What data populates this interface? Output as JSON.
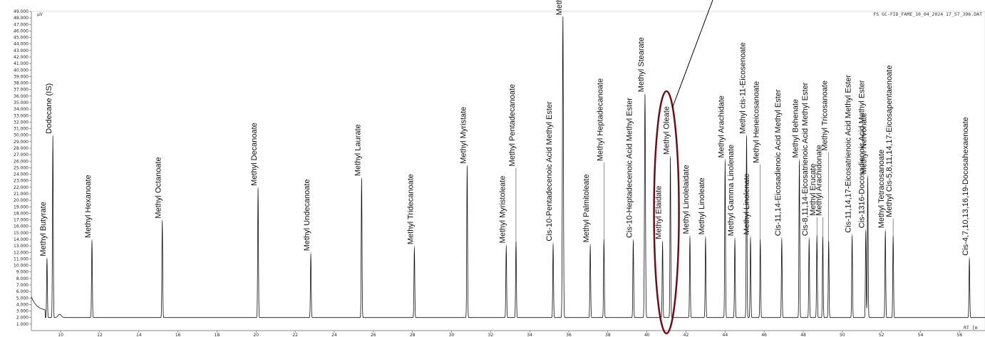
{
  "header": {
    "file_tag": "FS GC-FID_FAME_10_04_2024 17_57_396.DAT",
    "y_unit": "µV",
    "x_label": "RT [m"
  },
  "chart_data": {
    "type": "line",
    "x_unit": "min",
    "y_unit": "µV",
    "xlim": [
      8.5,
      57.3
    ],
    "ylim": [
      0,
      49000
    ],
    "y_ticks": [
      "1.000",
      "2.000",
      "3.000",
      "4.000",
      "5.000",
      "6.000",
      "7.000",
      "8.000",
      "9.000",
      "10.000",
      "11.000",
      "12.000",
      "13.000",
      "14.000",
      "15.000",
      "16.000",
      "17.000",
      "18.000",
      "19.000",
      "20.000",
      "21.000",
      "22.000",
      "23.000",
      "24.000",
      "25.000",
      "26.000",
      "27.000",
      "28.000",
      "29.000",
      "30.000",
      "31.000",
      "32.000",
      "33.000",
      "34.000",
      "35.000",
      "36.000",
      "37.000",
      "38.000",
      "39.000",
      "40.000",
      "41.000",
      "42.000",
      "43.000",
      "44.000",
      "45.000",
      "46.000",
      "47.000",
      "48.000",
      "49.000"
    ],
    "x_ticks": [
      "10",
      "12",
      "14",
      "16",
      "18",
      "20",
      "22",
      "24",
      "26",
      "28",
      "30",
      "32",
      "34",
      "36",
      "38",
      "40",
      "42",
      "44",
      "46",
      "48",
      "50",
      "52",
      "54",
      "56"
    ],
    "peaks": [
      {
        "name": "Methyl Butyrate",
        "rt": 9.3,
        "height": 11000,
        "label_at": 11200
      },
      {
        "name": "Dodecane (IS)",
        "rt": 9.6,
        "height": 29800,
        "label_at": 30000
      },
      {
        "name": "Methyl Hexanoate",
        "rt": 11.6,
        "height": 13800,
        "label_at": 14000
      },
      {
        "name": "Methyl Octanoate",
        "rt": 15.2,
        "height": 16800,
        "label_at": 17000
      },
      {
        "name": "Methyl Decanoate",
        "rt": 20.1,
        "height": 21800,
        "label_at": 22000
      },
      {
        "name": "Methyl Undecanoate",
        "rt": 22.8,
        "height": 11700,
        "label_at": 12000
      },
      {
        "name": "Methyl Laurate",
        "rt": 25.4,
        "height": 23300,
        "label_at": 23500
      },
      {
        "name": "Methyl Tridecanoate",
        "rt": 28.1,
        "height": 12700,
        "label_at": 13000
      },
      {
        "name": "Methyl Myristate",
        "rt": 30.8,
        "height": 25200,
        "label_at": 25400
      },
      {
        "name": "Methyl Myristoleate",
        "rt": 32.8,
        "height": 12900,
        "label_at": 13200
      },
      {
        "name": "Methyl Pentadecanoate",
        "rt": 33.3,
        "height": 13700,
        "label_at": 25000
      },
      {
        "name": "Cis-10-Pentadecenoic Acid Methyl Ester",
        "rt": 35.2,
        "height": 13200,
        "label_at": 13500
      },
      {
        "name": "Methyl Palmitate",
        "rt": 35.7,
        "height": 48200,
        "label_at": 48200
      },
      {
        "name": "Methyl Palmitoleate",
        "rt": 37.1,
        "height": 13000,
        "label_at": 13300
      },
      {
        "name": "Methyl Heptadecanoate",
        "rt": 37.8,
        "height": 14000,
        "label_at": 25800
      },
      {
        "name": "Cis-10-Heptadecenoic Acid Methyl Ester",
        "rt": 39.3,
        "height": 13800,
        "label_at": 14000
      },
      {
        "name": "Methyl Stearate",
        "rt": 39.9,
        "height": 36200,
        "label_at": 36400
      },
      {
        "name": "Methyl Elaidate",
        "rt": 40.8,
        "height": 13500,
        "label_at": 13800
      },
      {
        "name": "Methyl Oleate",
        "rt": 41.2,
        "height": 26500,
        "label_at": 26800
      },
      {
        "name": "Methyl Linolelaidate",
        "rt": 42.2,
        "height": 14300,
        "label_at": 14600
      },
      {
        "name": "Methyl Linoleate",
        "rt": 43.0,
        "height": 14200,
        "label_at": 14500
      },
      {
        "name": "Methyl Arachidate",
        "rt": 44.0,
        "height": 26000,
        "label_at": 26300
      },
      {
        "name": "Methyl Gamma Linolenate",
        "rt": 44.5,
        "height": 14000,
        "label_at": 14300
      },
      {
        "name": "Methyl cis-11-Eicosenoate",
        "rt": 45.1,
        "height": 29800,
        "label_at": 30000
      },
      {
        "name": "Methyl Linolenate",
        "rt": 45.3,
        "height": 14200,
        "label_at": 14500
      },
      {
        "name": "Methyl Heneicosanoate",
        "rt": 45.8,
        "height": 14000,
        "label_at": 25500
      },
      {
        "name": "Cis-11,14-Eicosadienoic Acid Methyl Ester",
        "rt": 46.9,
        "height": 14000,
        "label_at": 14300
      },
      {
        "name": "Methyl Behenate",
        "rt": 47.8,
        "height": 26000,
        "label_at": 26300
      },
      {
        "name": "Cis-8,11,14-Eicosatrienoic Acid Methyl Ester",
        "rt": 48.3,
        "height": 14000,
        "label_at": 14300
      },
      {
        "name": "Methyl Erucate",
        "rt": 48.7,
        "height": 14600,
        "label_at": 17400
      },
      {
        "name": "Methyl Arachidonate",
        "rt": 49.0,
        "height": 14400,
        "label_at": 17400
      },
      {
        "name": "Methyl Tricosanoate",
        "rt": 49.3,
        "height": 13800,
        "label_at": 27400
      },
      {
        "name": "Cis-11,14,17-Eicosatrienoic Acid Methyl Ester",
        "rt": 50.5,
        "height": 14500,
        "label_at": 14800
      },
      {
        "name": "Cis-1316-Docosadienoic Acid Methyl Ester",
        "rt": 51.2,
        "height": 15200,
        "label_at": 15500
      },
      {
        "name": "Methyl Nervonate",
        "rt": 51.3,
        "height": 23500,
        "label_at": 23800
      },
      {
        "name": "Methyl Tetracosanoate",
        "rt": 52.2,
        "height": 15200,
        "label_at": 15500
      },
      {
        "name": "Methyl Cis-5,8,11,14,17-Eicosapentaenoate",
        "rt": 52.6,
        "height": 14500,
        "label_at": 17200
      },
      {
        "name": "Cis-4,7,10,13,16,19-Docosahexaenoate",
        "rt": 56.5,
        "height": 11000,
        "label_at": 11300
      }
    ],
    "highlight": {
      "peaks": [
        "Methyl Elaidate",
        "Methyl Oleate"
      ],
      "color": "#6b0f1a"
    },
    "grid": false,
    "legend": "none"
  }
}
